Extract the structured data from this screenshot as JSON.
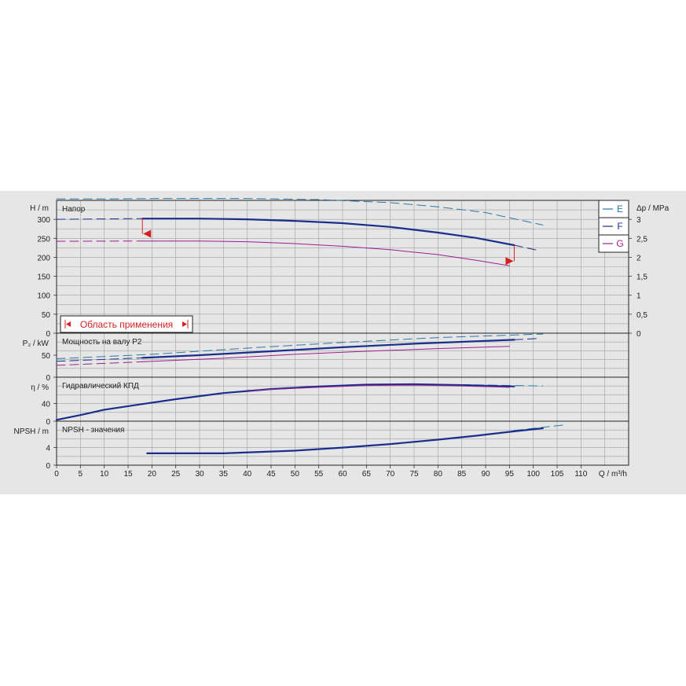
{
  "chart_data": {
    "type": "line",
    "x_axis": {
      "label": "Q / m³/h",
      "min": 0,
      "max": 120,
      "tick_labels": [
        "0",
        "5",
        "10",
        "15",
        "20",
        "25",
        "30",
        "35",
        "40",
        "45",
        "50",
        "55",
        "60",
        "65",
        "70",
        "75",
        "80",
        "85",
        "90",
        "95",
        "100",
        "105",
        "110"
      ]
    },
    "legend": {
      "placement": "top-right",
      "items": [
        {
          "name": "E",
          "color": "#2a7aa6"
        },
        {
          "name": "F",
          "color": "#1a2f8c"
        },
        {
          "name": "G",
          "color": "#9c1f8f"
        }
      ]
    },
    "panels": [
      {
        "id": "head",
        "title": "Напор",
        "ylabel": "H / m",
        "ylim": [
          0,
          350
        ],
        "yticks": [
          "0",
          "50",
          "100",
          "150",
          "200",
          "250",
          "300"
        ],
        "right_axis": {
          "label": "Δp / MPa",
          "ylim": [
            0,
            3.5
          ],
          "ticks": [
            {
              "v": 0,
              "t": "0"
            },
            {
              "v": 0.5,
              "t": "0,5"
            },
            {
              "v": 1,
              "t": "1"
            },
            {
              "v": 1.5,
              "t": "1,5"
            },
            {
              "v": 2,
              "t": "2"
            },
            {
              "v": 2.5,
              "t": "2,5"
            },
            {
              "v": 3,
              "t": "3"
            }
          ]
        },
        "range_label": "Область применения",
        "series": [
          {
            "name": "E",
            "color": "#2a7aa6",
            "width": 1,
            "dashed": [
              [
                0,
                354
              ],
              [
                12,
                354
              ],
              [
                22,
                355
              ],
              [
                40,
                355
              ],
              [
                55,
                352
              ],
              [
                70,
                344
              ],
              [
                80,
                333
              ],
              [
                90,
                318
              ],
              [
                102,
                285
              ]
            ]
          },
          {
            "name": "F",
            "color": "#1a2f8c",
            "width": 1,
            "dashed": [
              [
                0,
                300
              ],
              [
                18,
                302
              ]
            ]
          },
          {
            "name": "F",
            "color": "#1a2f8c",
            "width": 2.2,
            "solid": [
              [
                18,
                302
              ],
              [
                30,
                302
              ],
              [
                40,
                300
              ],
              [
                50,
                296
              ],
              [
                60,
                290
              ],
              [
                70,
                280
              ],
              [
                80,
                265
              ],
              [
                88,
                251
              ],
              [
                96,
                232
              ]
            ]
          },
          {
            "name": "F",
            "color": "#1a2f8c",
            "width": 1,
            "dashed": [
              [
                96,
                232
              ],
              [
                101,
                218
              ]
            ]
          },
          {
            "name": "G",
            "color": "#9c1f8f",
            "width": 1,
            "dashed": [
              [
                0,
                242
              ],
              [
                18,
                243
              ]
            ]
          },
          {
            "name": "G",
            "color": "#9c1f8f",
            "width": 1,
            "solid": [
              [
                18,
                243
              ],
              [
                30,
                243
              ],
              [
                40,
                241
              ],
              [
                50,
                236
              ],
              [
                60,
                229
              ],
              [
                70,
                220
              ],
              [
                80,
                207
              ],
              [
                88,
                192
              ],
              [
                95,
                178
              ]
            ]
          }
        ],
        "markers": [
          {
            "q": 18,
            "h": 302,
            "h2": 262,
            "direction": "left"
          },
          {
            "q": 96,
            "h": 232,
            "h2": 190,
            "direction": "right"
          }
        ]
      },
      {
        "id": "power",
        "title": "Мощность на валу P2",
        "ylabel": "P₂ / kW",
        "ylim": [
          0,
          100
        ],
        "yticks": [
          "0",
          "50"
        ],
        "series": [
          {
            "name": "E",
            "color": "#2a7aa6",
            "width": 1,
            "dashed": [
              [
                0,
                42
              ],
              [
                20,
                52
              ],
              [
                40,
                66
              ],
              [
                60,
                79
              ],
              [
                80,
                90
              ],
              [
                102,
                98
              ]
            ]
          },
          {
            "name": "F",
            "color": "#1a2f8c",
            "width": 1,
            "dashed": [
              [
                0,
                36
              ],
              [
                18,
                44
              ]
            ]
          },
          {
            "name": "F",
            "color": "#1a2f8c",
            "width": 2.2,
            "solid": [
              [
                18,
                44
              ],
              [
                30,
                50
              ],
              [
                45,
                59
              ],
              [
                60,
                68
              ],
              [
                75,
                76
              ],
              [
                96,
                85
              ]
            ]
          },
          {
            "name": "F",
            "color": "#1a2f8c",
            "width": 1,
            "dashed": [
              [
                96,
                85
              ],
              [
                101,
                88
              ]
            ]
          },
          {
            "name": "G",
            "color": "#9c1f8f",
            "width": 1,
            "dashed": [
              [
                0,
                27
              ],
              [
                18,
                35
              ]
            ]
          },
          {
            "name": "G",
            "color": "#9c1f8f",
            "width": 1,
            "solid": [
              [
                18,
                35
              ],
              [
                35,
                43
              ],
              [
                50,
                52
              ],
              [
                65,
                59
              ],
              [
                80,
                65
              ],
              [
                95,
                70
              ]
            ]
          }
        ]
      },
      {
        "id": "efficiency",
        "title": "Гидравлический КПД",
        "ylabel": "η / %",
        "ylim": [
          0,
          100
        ],
        "yticks": [
          "0",
          "40"
        ],
        "series": [
          {
            "name": "E",
            "color": "#2a7aa6",
            "width": 1,
            "dashed": [
              [
                85,
                83
              ],
              [
                102,
                80
              ]
            ]
          },
          {
            "name": "F",
            "color": "#1a2f8c",
            "width": 2.2,
            "solid": [
              [
                0,
                3
              ],
              [
                5,
                14
              ],
              [
                10,
                26
              ],
              [
                18,
                39
              ],
              [
                25,
                50
              ],
              [
                35,
                64
              ],
              [
                45,
                73
              ],
              [
                55,
                79
              ],
              [
                65,
                83
              ],
              [
                75,
                84
              ],
              [
                85,
                82
              ],
              [
                96,
                79
              ]
            ]
          },
          {
            "name": "G",
            "color": "#9c1f8f",
            "width": 1,
            "solid": [
              [
                40,
                70
              ],
              [
                55,
                77
              ],
              [
                65,
                81
              ],
              [
                75,
                82
              ],
              [
                85,
                80
              ],
              [
                95,
                77
              ]
            ]
          }
        ]
      },
      {
        "id": "npsh",
        "title": "NPSH - значения",
        "ylabel": "NPSH / m",
        "ylim": [
          0,
          10
        ],
        "yticks": [
          "0",
          "4"
        ],
        "series": [
          {
            "name": "E",
            "color": "#2a7aa6",
            "width": 1,
            "dashed": [
              [
                96,
                7.9
              ],
              [
                107,
                9.2
              ]
            ]
          },
          {
            "name": "F",
            "color": "#1a2f8c",
            "width": 2.2,
            "solid": [
              [
                19,
                2.7
              ],
              [
                35,
                2.7
              ],
              [
                50,
                3.3
              ],
              [
                60,
                4.0
              ],
              [
                70,
                4.8
              ],
              [
                80,
                5.8
              ],
              [
                88,
                6.7
              ],
              [
                96,
                7.7
              ],
              [
                102,
                8.4
              ]
            ]
          }
        ]
      }
    ]
  }
}
